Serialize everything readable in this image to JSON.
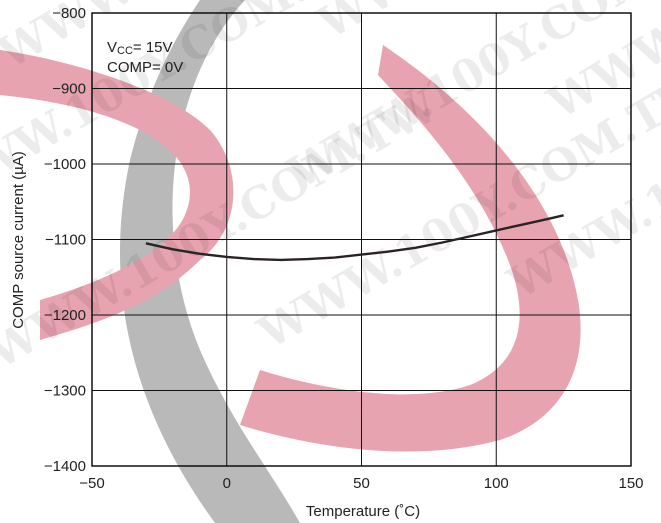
{
  "chart_data": {
    "type": "line",
    "xlabel": "Temperature (˚C)",
    "ylabel": "COMP source current (µA)",
    "xlim": [
      -50,
      150
    ],
    "ylim": [
      -1400,
      -800
    ],
    "xticks": [
      -50,
      0,
      50,
      100,
      150
    ],
    "yticks": [
      -800,
      -900,
      -1000,
      -1100,
      -1200,
      -1300,
      -1400
    ],
    "xtick_labels": [
      "−50",
      "0",
      "50",
      "100",
      "150"
    ],
    "ytick_labels": [
      "−800",
      "−900",
      "−1000",
      "−1100",
      "−1200",
      "−1300",
      "−1400"
    ],
    "grid": true,
    "annotations": {
      "vcc_symbol": "V",
      "vcc_subscript": "CC",
      "vcc_value": "= 15V",
      "comp": "COMP= 0V"
    },
    "series": [
      {
        "color": "#2a2326",
        "x": [
          -30,
          -20,
          -10,
          0,
          10,
          20,
          30,
          40,
          50,
          60,
          70,
          80,
          90,
          100,
          110,
          115,
          120,
          125
        ],
        "y": [
          -1105,
          -1113,
          -1119,
          -1123,
          -1126,
          -1127,
          -1126,
          -1124,
          -1120,
          -1116,
          -1111,
          -1104,
          -1096,
          -1088,
          -1080,
          -1076,
          -1072,
          -1068
        ]
      }
    ]
  },
  "watermark": [
    "WWW.100Y.COM.TW",
    "WWW.100Y.COM.TW",
    "WWW.100Y.COM.TW",
    "WWW.100Y.COM.TW",
    "WWW.100Y.COM.TW",
    "WWW.100Y.COM.TW",
    "WWW.100Y.COM.TW",
    "WWW.100Y.COM.TW"
  ],
  "colors": {
    "background_logo_pink": "#e7a0ad",
    "background_logo_gray": "#b8b8b8",
    "grid": "#111111",
    "curve": "#2a2326"
  }
}
